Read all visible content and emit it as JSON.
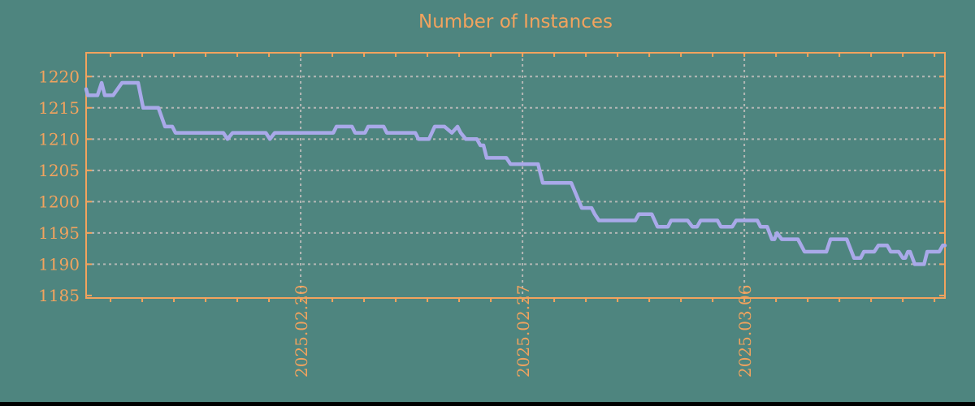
{
  "chart_data": {
    "type": "line",
    "title": "Number of Instances",
    "xlabel": "",
    "ylabel": "",
    "legend": "none",
    "grid": "dashed",
    "xlim_days": [
      0.23,
      27.33
    ],
    "ylim": [
      1184.6,
      1223.8
    ],
    "y_ticks": [
      1185,
      1190,
      1195,
      1200,
      1205,
      1210,
      1215,
      1220
    ],
    "x_ticks": [
      {
        "day": 7,
        "label": "2025.02.20"
      },
      {
        "day": 14,
        "label": "2025.02.27"
      },
      {
        "day": 21,
        "label": "2025.03.06"
      }
    ],
    "minor_x_tick_days": [
      1,
      2,
      3,
      4,
      5,
      6,
      7,
      8,
      9,
      10,
      11,
      12,
      13,
      14,
      15,
      16,
      17,
      18,
      19,
      20,
      21,
      22,
      23,
      24,
      25,
      26,
      27
    ],
    "series": [
      {
        "name": "instances",
        "points": [
          [
            0.23,
            1218
          ],
          [
            0.28,
            1217
          ],
          [
            0.59,
            1217
          ],
          [
            0.72,
            1219
          ],
          [
            0.82,
            1217
          ],
          [
            1.08,
            1217
          ],
          [
            1.36,
            1219
          ],
          [
            1.87,
            1219
          ],
          [
            2.03,
            1215
          ],
          [
            2.51,
            1215
          ],
          [
            2.72,
            1212
          ],
          [
            2.95,
            1212
          ],
          [
            3.05,
            1211
          ],
          [
            4.56,
            1211
          ],
          [
            4.69,
            1210
          ],
          [
            4.85,
            1211
          ],
          [
            5.9,
            1211
          ],
          [
            6.03,
            1210
          ],
          [
            6.18,
            1211
          ],
          [
            8.03,
            1211
          ],
          [
            8.13,
            1212
          ],
          [
            8.62,
            1212
          ],
          [
            8.72,
            1211
          ],
          [
            9.03,
            1211
          ],
          [
            9.13,
            1212
          ],
          [
            9.62,
            1212
          ],
          [
            9.72,
            1211
          ],
          [
            10.62,
            1211
          ],
          [
            10.72,
            1210
          ],
          [
            11.05,
            1210
          ],
          [
            11.23,
            1212
          ],
          [
            11.54,
            1212
          ],
          [
            11.77,
            1211
          ],
          [
            11.95,
            1212
          ],
          [
            12.05,
            1211
          ],
          [
            12.21,
            1210
          ],
          [
            12.56,
            1210
          ],
          [
            12.67,
            1209
          ],
          [
            12.77,
            1209
          ],
          [
            12.87,
            1207
          ],
          [
            13.49,
            1207
          ],
          [
            13.62,
            1206
          ],
          [
            14.49,
            1206
          ],
          [
            14.64,
            1203
          ],
          [
            15.54,
            1203
          ],
          [
            15.87,
            1199
          ],
          [
            16.18,
            1199
          ],
          [
            16.28,
            1198
          ],
          [
            16.41,
            1197
          ],
          [
            17.56,
            1197
          ],
          [
            17.67,
            1198
          ],
          [
            18.08,
            1198
          ],
          [
            18.26,
            1196
          ],
          [
            18.59,
            1196
          ],
          [
            18.69,
            1197
          ],
          [
            19.21,
            1197
          ],
          [
            19.36,
            1196
          ],
          [
            19.51,
            1196
          ],
          [
            19.62,
            1197
          ],
          [
            20.15,
            1197
          ],
          [
            20.26,
            1196
          ],
          [
            20.62,
            1196
          ],
          [
            20.74,
            1197
          ],
          [
            21.41,
            1197
          ],
          [
            21.51,
            1196
          ],
          [
            21.72,
            1196
          ],
          [
            21.87,
            1194
          ],
          [
            21.95,
            1194
          ],
          [
            22.03,
            1195
          ],
          [
            22.18,
            1194
          ],
          [
            22.69,
            1194
          ],
          [
            22.9,
            1192
          ],
          [
            23.59,
            1192
          ],
          [
            23.72,
            1194
          ],
          [
            24.23,
            1194
          ],
          [
            24.46,
            1191
          ],
          [
            24.67,
            1191
          ],
          [
            24.77,
            1192
          ],
          [
            25.1,
            1192
          ],
          [
            25.23,
            1193
          ],
          [
            25.51,
            1193
          ],
          [
            25.62,
            1192
          ],
          [
            25.87,
            1192
          ],
          [
            26.0,
            1191
          ],
          [
            26.08,
            1191
          ],
          [
            26.16,
            1192
          ],
          [
            26.23,
            1192
          ],
          [
            26.38,
            1190
          ],
          [
            26.67,
            1190
          ],
          [
            26.77,
            1192
          ],
          [
            27.15,
            1192
          ],
          [
            27.26,
            1193
          ],
          [
            27.33,
            1193
          ]
        ]
      }
    ],
    "colors": {
      "background": "#4e857f",
      "axis": "#f2a35e",
      "text": "#f2a35e",
      "grid": "#b3b7b5",
      "line": "#a9a9e9",
      "bottom_bar": "#000000"
    }
  }
}
